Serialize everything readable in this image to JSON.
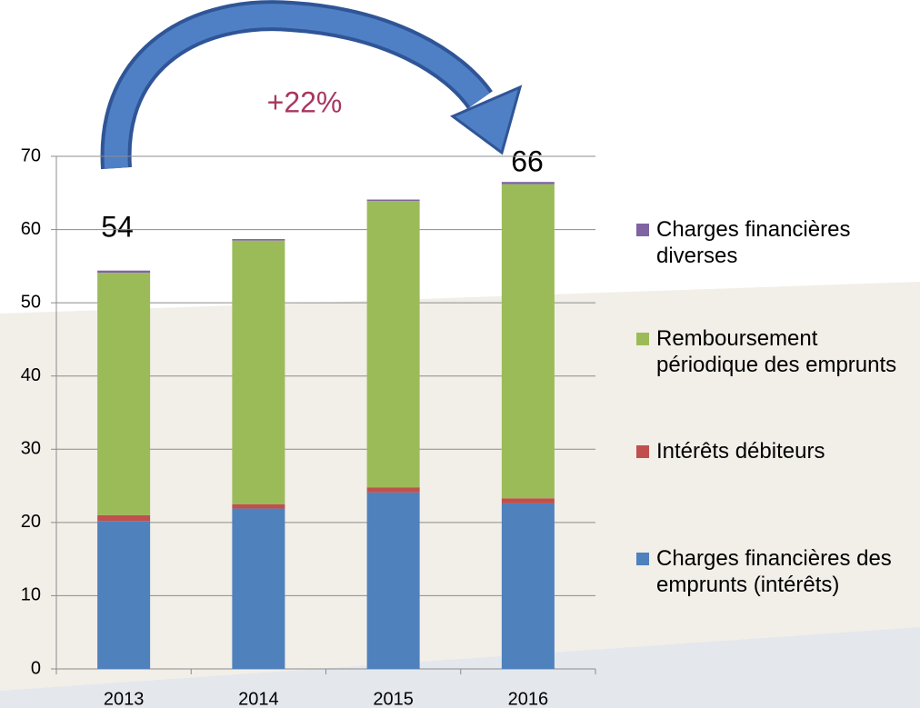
{
  "chart_data": {
    "type": "stacked_bar",
    "categories": [
      "2013",
      "2014",
      "2015",
      "2016"
    ],
    "series": [
      {
        "name": "Charges financières des emprunts (intérêts)",
        "color": "#4f81bd",
        "values": [
          20.2,
          21.9,
          24.1,
          22.6
        ]
      },
      {
        "name": "Intérêts débiteurs",
        "color": "#c0504d",
        "values": [
          0.8,
          0.6,
          0.7,
          0.7
        ]
      },
      {
        "name": "Remboursement périodique des emprunts",
        "color": "#9bbb59",
        "values": [
          33.1,
          36.0,
          39.1,
          42.9
        ]
      },
      {
        "name": "Charges financières diverses",
        "color": "#8064a2",
        "values": [
          0.3,
          0.2,
          0.2,
          0.3
        ]
      }
    ],
    "ylim": [
      0,
      70
    ],
    "yticks": [
      0,
      10,
      20,
      30,
      40,
      50,
      60,
      70
    ],
    "grid": true,
    "annotations": [
      "+22%",
      "54",
      "66"
    ]
  }
}
